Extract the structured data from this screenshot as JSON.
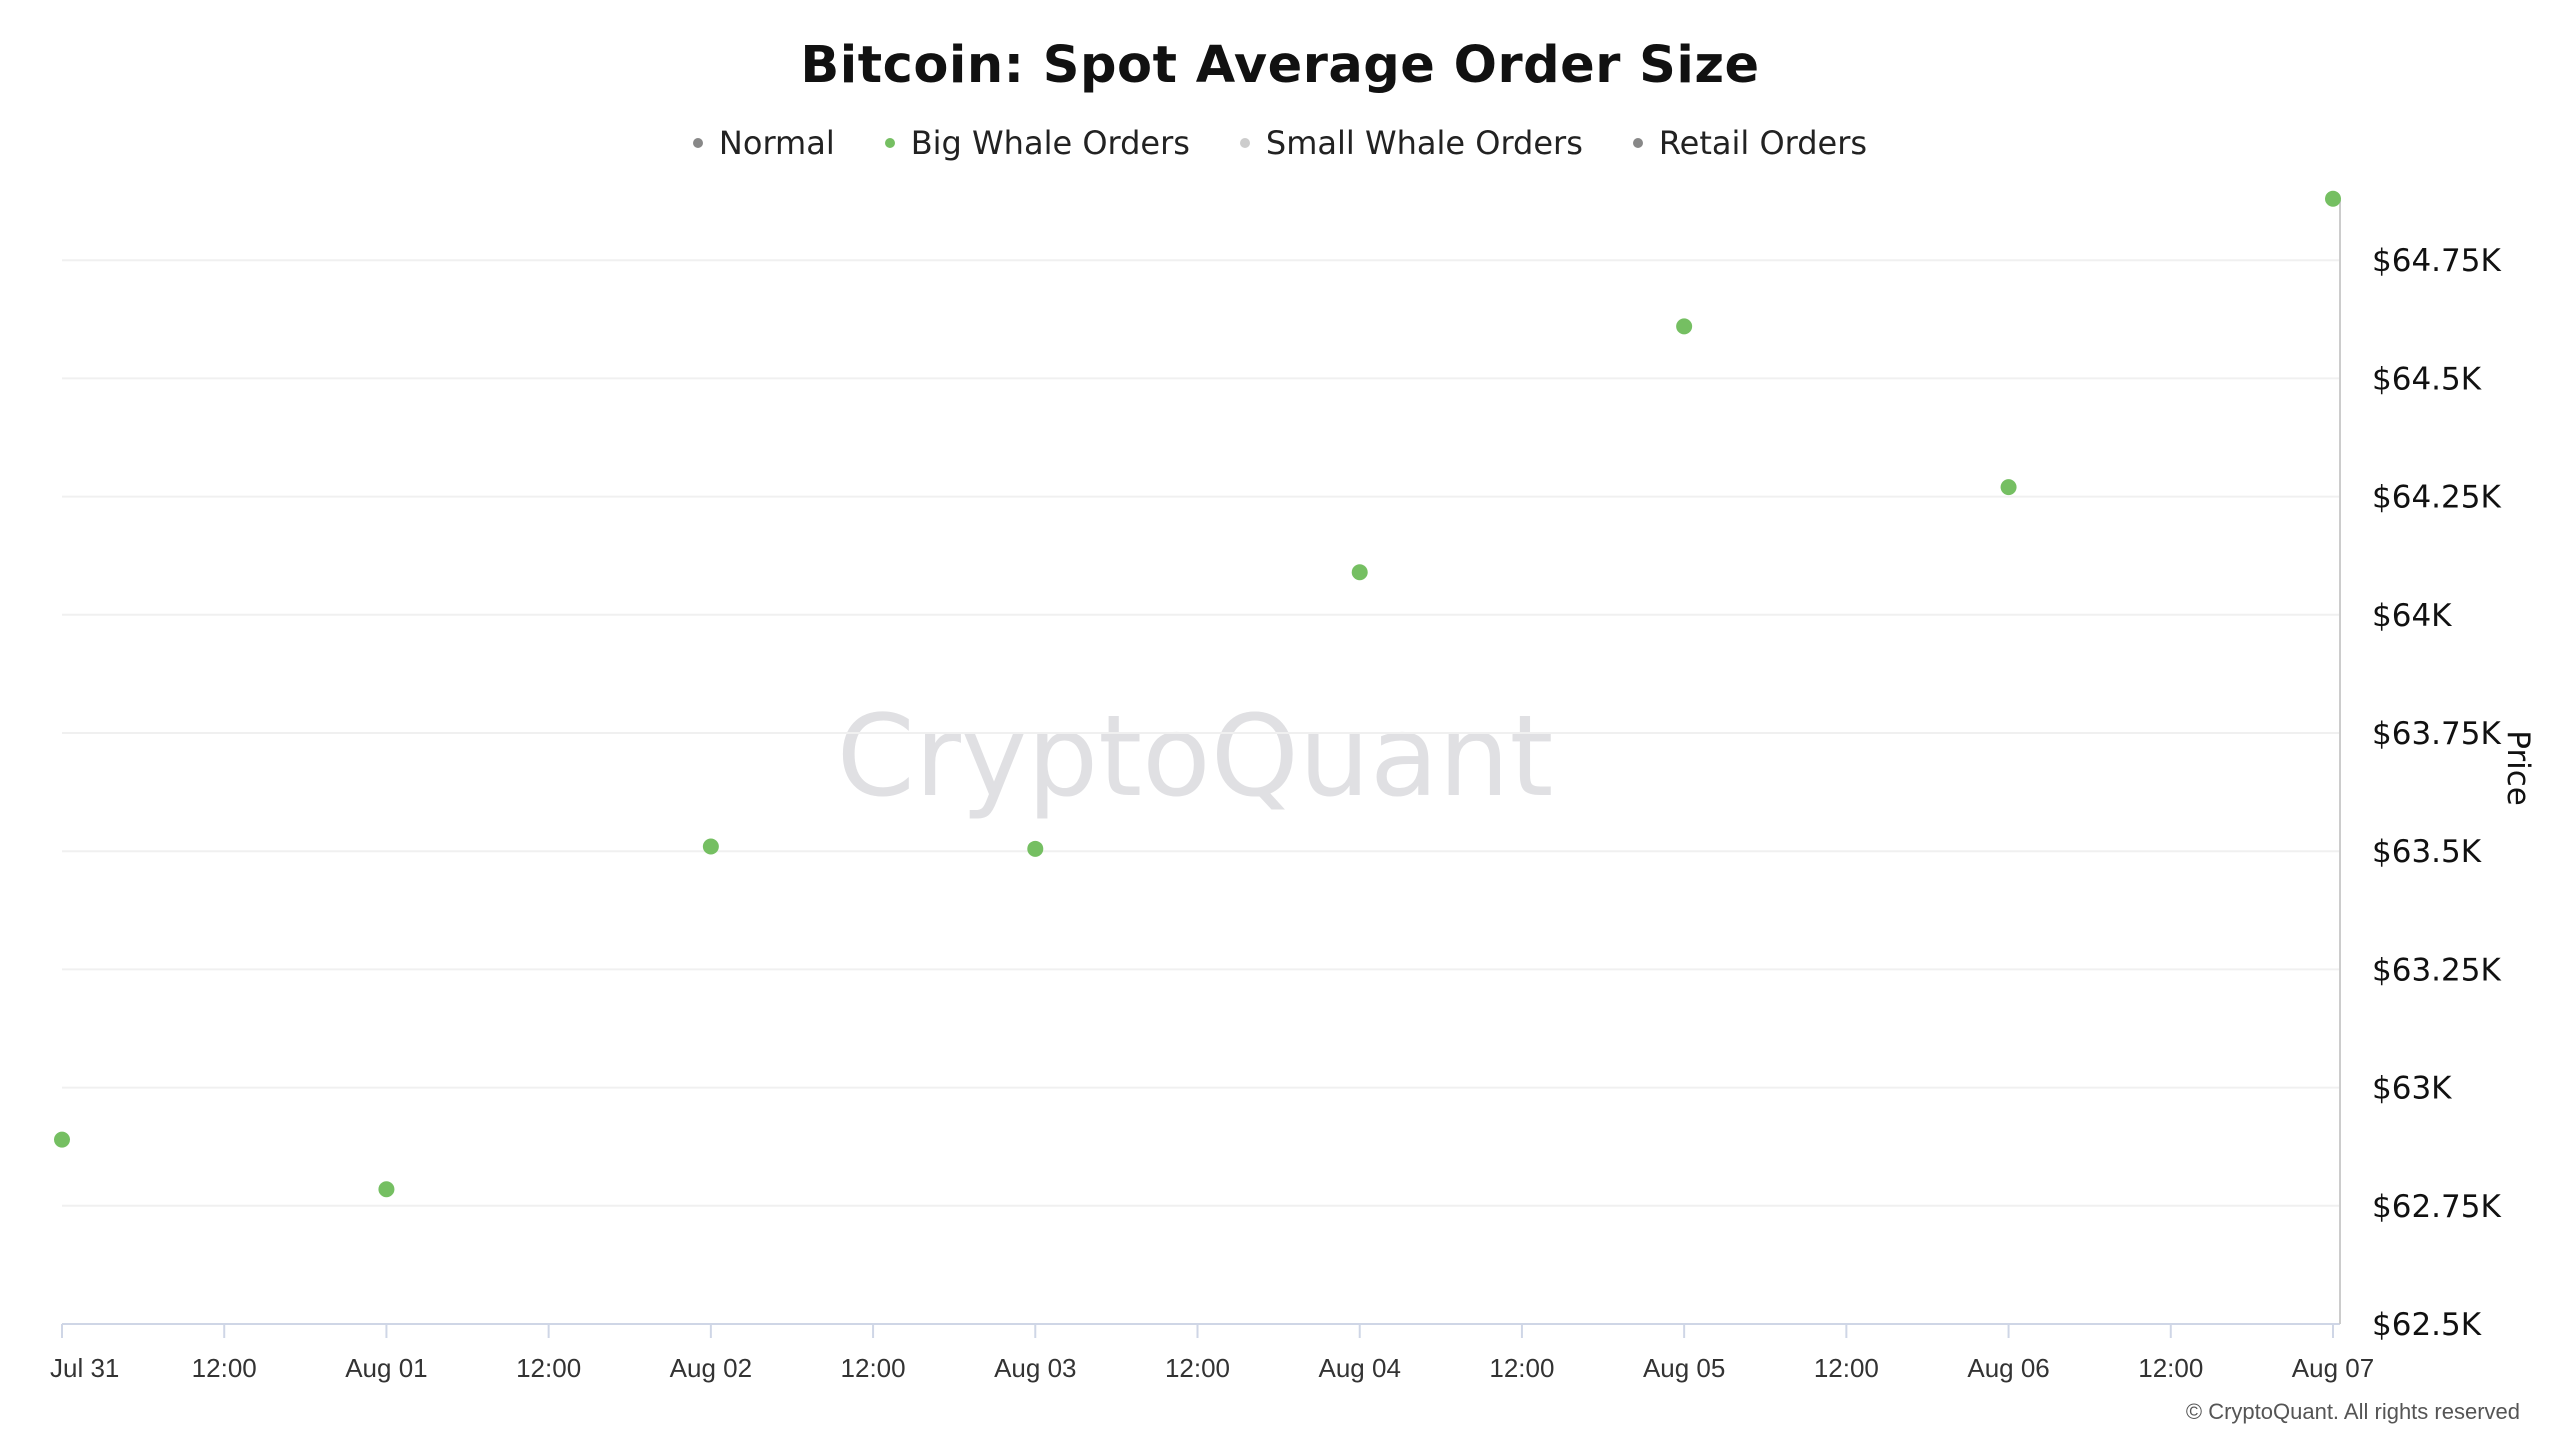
{
  "chart_data": {
    "type": "scatter",
    "title": "Bitcoin: Spot Average Order Size",
    "ylabel": "Price",
    "xlabel": "",
    "legend_position": "top-center",
    "grid": true,
    "y_tick_labels": [
      "$62.5K",
      "$62.75K",
      "$63K",
      "$63.25K",
      "$63.5K",
      "$63.75K",
      "$64K",
      "$64.25K",
      "$64.5K",
      "$64.75K"
    ],
    "y_ticks": [
      62500,
      62750,
      63000,
      63250,
      63500,
      63750,
      64000,
      64250,
      64500,
      64750
    ],
    "ylim": [
      62500,
      65000
    ],
    "x_tick_labels": [
      "Jul 31",
      "12:00",
      "Aug 01",
      "12:00",
      "Aug 02",
      "12:00",
      "Aug 03",
      "12:00",
      "Aug 04",
      "12:00",
      "Aug 05",
      "12:00",
      "Aug 06",
      "12:00",
      "Aug 07"
    ],
    "xlim": [
      "Jul 31",
      "Aug 07"
    ],
    "series": [
      {
        "name": "Normal",
        "color": "#888888",
        "x": [],
        "values": []
      },
      {
        "name": "Big Whale Orders",
        "color": "#75bf62",
        "x": [
          "Jul 31",
          "Aug 01",
          "Aug 02",
          "Aug 03",
          "Aug 04",
          "Aug 05",
          "Aug 06",
          "Aug 07"
        ],
        "values": [
          62890,
          62785,
          63510,
          63505,
          64090,
          64610,
          64270,
          64880
        ]
      },
      {
        "name": "Small Whale Orders",
        "color": "#cccccc",
        "x": [],
        "values": []
      },
      {
        "name": "Retail Orders",
        "color": "#888888",
        "x": [],
        "values": []
      }
    ],
    "watermark": "CryptoQuant"
  },
  "footer": {
    "copyright": "© CryptoQuant. All rights reserved"
  }
}
